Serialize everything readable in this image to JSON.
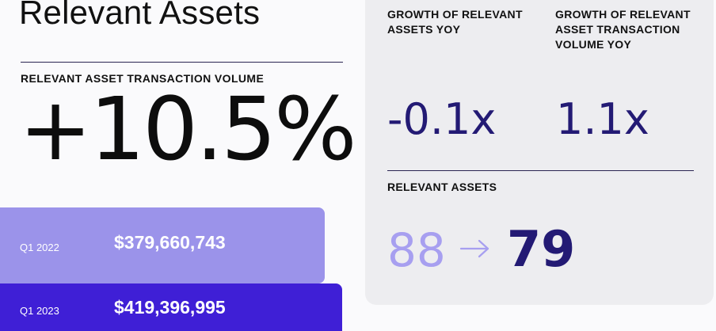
{
  "title": "Relevant Assets",
  "transaction_volume": {
    "label": "RELEVANT ASSET TRANSACTION VOLUME",
    "change": "+10.5%"
  },
  "quarters": [
    {
      "period": "Q1 2022",
      "amount": "$379,660,743",
      "color": "#9b93ea"
    },
    {
      "period": "Q1 2023",
      "amount": "$419,396,995",
      "color": "#3f1fd6"
    }
  ],
  "growth": [
    {
      "label": "GROWTH OF RELEVANT ASSETS YOY",
      "value": "-0.1x"
    },
    {
      "label": "GROWTH OF RELEVANT ASSET TRANSACTION VOLUME YOY",
      "value": "1.1x"
    }
  ],
  "relevant_assets": {
    "label": "RELEVANT ASSETS",
    "from": "88",
    "to": "79",
    "arrow_icon": "arrow-right-icon"
  },
  "colors": {
    "accent_dark": "#231a74",
    "accent_light": "#a79ff0",
    "panel_bg": "#ededf0"
  }
}
